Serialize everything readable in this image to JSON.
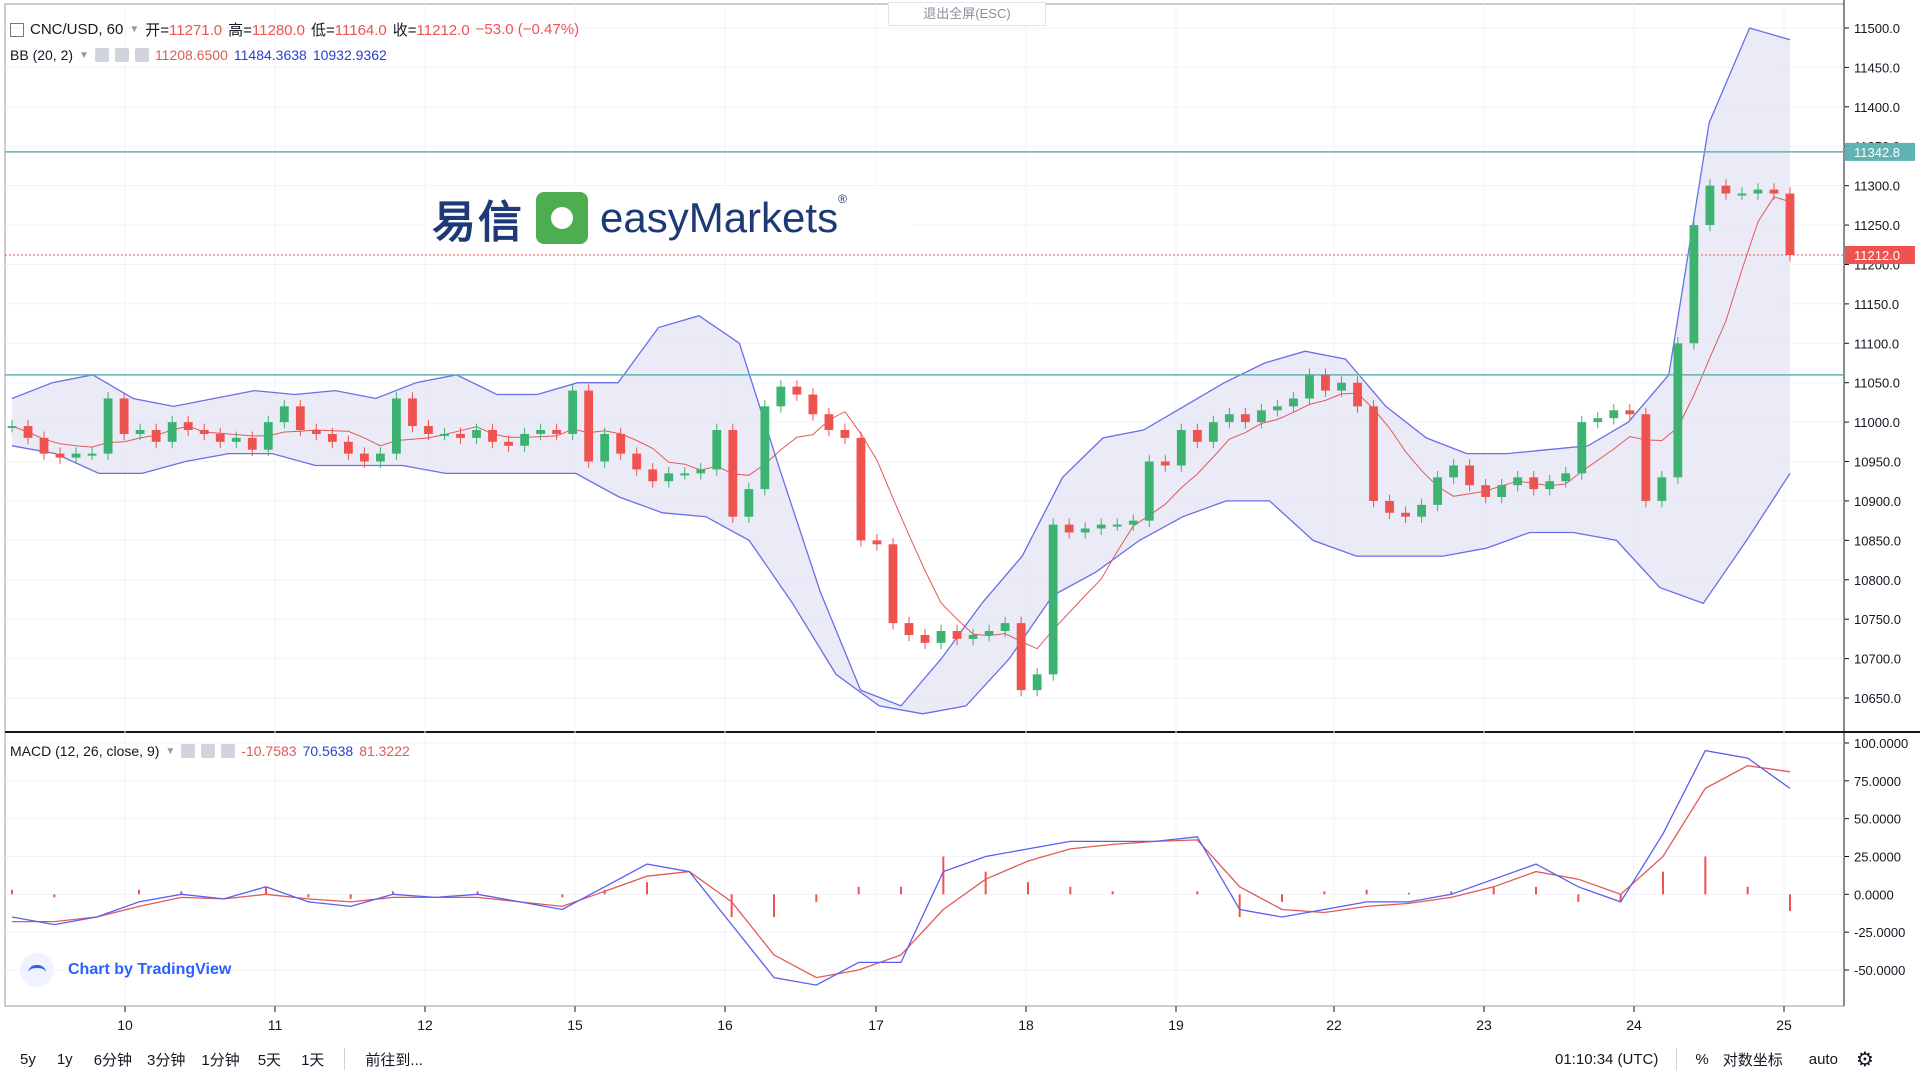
{
  "header": {
    "symbol": "CNC/USD, 60",
    "open_label": "开=",
    "open": "11271.0",
    "high_label": "高=",
    "high": "11280.0",
    "low_label": "低=",
    "low": "11164.0",
    "close_label": "收=",
    "close": "11212.0",
    "change": "−53.0 (−0.47%)",
    "exit_fullscreen": "退出全屏(ESC)"
  },
  "bb_legend": {
    "name": "BB (20, 2)",
    "basis": "11208.6500",
    "upper": "11484.3638",
    "lower": "10932.9362"
  },
  "macd_legend": {
    "name": "MACD (12, 26, close, 9)",
    "hist": "-10.7583",
    "macd": "70.5638",
    "signal": "81.3222"
  },
  "logo": {
    "cn": "易信",
    "en": "easyMarkets",
    "reg": "®"
  },
  "brand_text": "Chart by TradingView",
  "price_tags": {
    "line_high": "11342.8",
    "current": "11212.0"
  },
  "colors": {
    "up": "#26a69a",
    "green_candle": "#3cb371",
    "down": "#ef5350",
    "bb_band": "#6a6ee8",
    "bb_fill": "#e6e7f5",
    "basis": "#e05a5a",
    "hline": "#5fb3b3"
  },
  "bottom": {
    "timeframes": [
      "5y",
      "1y",
      "6分钟",
      "3分钟",
      "1分钟",
      "5天",
      "1天"
    ],
    "goto": "前往到...",
    "clock": "01:10:34 (UTC)",
    "percent": "%",
    "log": "对数坐标",
    "auto": "auto",
    "gear_icon": "gear-icon"
  },
  "chart_data": [
    {
      "type": "candlestick",
      "title": "CNC/USD, 60",
      "ylim": [
        10600,
        11520
      ],
      "y_ticks": [
        "11500.0",
        "11450.0",
        "11400.0",
        "11350.0",
        "11300.0",
        "11250.0",
        "11200.0",
        "11150.0",
        "11100.0",
        "11050.0",
        "11000.0",
        "10950.0",
        "10900.0",
        "10850.0",
        "10800.0",
        "10750.0",
        "10700.0",
        "10650.0"
      ],
      "x_ticks": [
        "10",
        "11",
        "12",
        "15",
        "16",
        "17",
        "18",
        "19",
        "22",
        "23",
        "24",
        "25"
      ],
      "horizontal_lines": [
        11342.8,
        11060
      ],
      "close_series": [
        10995,
        10980,
        10960,
        10955,
        10960,
        10960,
        11030,
        10985,
        10990,
        10975,
        11000,
        10990,
        10985,
        10975,
        10980,
        10965,
        11000,
        11020,
        10990,
        10985,
        10975,
        10960,
        10950,
        10960,
        11030,
        10995,
        10985,
        10985,
        10980,
        10990,
        10975,
        10970,
        10985,
        10990,
        10985,
        11040,
        10950,
        10985,
        10960,
        10940,
        10925,
        10935,
        10935,
        10940,
        10990,
        10880,
        10915,
        11020,
        11045,
        11035,
        11010,
        10990,
        10980,
        10850,
        10845,
        10745,
        10730,
        10720,
        10735,
        10725,
        10730,
        10735,
        10745,
        10660,
        10680,
        10870,
        10860,
        10865,
        10870,
        10870,
        10875,
        10950,
        10945,
        10990,
        10975,
        11000,
        11010,
        11000,
        11015,
        11020,
        11030,
        11060,
        11040,
        11050,
        11020,
        10900,
        10885,
        10880,
        10895,
        10930,
        10945,
        10920,
        10905,
        10920,
        10930,
        10915,
        10925,
        10935,
        11000,
        11005,
        11015,
        11010,
        10900,
        10930,
        11100,
        11250,
        11300,
        11290,
        11290,
        11295,
        11290,
        11212
      ],
      "bb_upper_approx": [
        11030,
        11050,
        11060,
        11030,
        11020,
        11030,
        11040,
        11035,
        11040,
        11030,
        11050,
        11060,
        11035,
        11035,
        11050,
        11050,
        11120,
        11135,
        11100,
        10940,
        10785,
        10660,
        10640,
        10700,
        10770,
        10830,
        10930,
        10980,
        10990,
        11020,
        11050,
        11075,
        11090,
        11080,
        11020,
        10980,
        10960,
        10960,
        10965,
        10970,
        11000,
        11060,
        11380,
        11500,
        11485
      ],
      "bb_lower_approx": [
        10970,
        10960,
        10935,
        10935,
        10950,
        10960,
        10960,
        10945,
        10945,
        10945,
        10935,
        10935,
        10935,
        10935,
        10905,
        10885,
        10880,
        10850,
        10770,
        10680,
        10640,
        10630,
        10640,
        10700,
        10780,
        10810,
        10850,
        10880,
        10900,
        10900,
        10850,
        10830,
        10830,
        10830,
        10840,
        10860,
        10860,
        10850,
        10790,
        10770,
        10850,
        10935
      ],
      "basis_last": 11208.65
    },
    {
      "type": "line",
      "title": "MACD (12, 26, close, 9)",
      "ylim": [
        -60,
        105
      ],
      "y_ticks": [
        "100.0000",
        "75.0000",
        "50.0000",
        "25.0000",
        "0.0000",
        "-25.0000",
        "-50.0000"
      ],
      "series": [
        {
          "name": "MACD",
          "values": [
            -15,
            -20,
            -15,
            -5,
            0,
            -3,
            5,
            -5,
            -8,
            0,
            -2,
            0,
            -5,
            -10,
            5,
            20,
            15,
            -20,
            -55,
            -60,
            -45,
            -45,
            15,
            25,
            30,
            35,
            35,
            35,
            38,
            -10,
            -15,
            -10,
            -5,
            -5,
            0,
            10,
            20,
            5,
            -5,
            40,
            95,
            90,
            70
          ]
        },
        {
          "name": "Signal",
          "values": [
            -18,
            -18,
            -15,
            -8,
            -2,
            -3,
            0,
            -3,
            -5,
            -2,
            -2,
            -2,
            -5,
            -8,
            2,
            12,
            15,
            -5,
            -40,
            -55,
            -50,
            -40,
            -10,
            10,
            22,
            30,
            33,
            35,
            36,
            5,
            -10,
            -12,
            -8,
            -6,
            -2,
            5,
            15,
            10,
            0,
            25,
            70,
            85,
            81
          ]
        },
        {
          "name": "Histogram",
          "values": [
            3,
            -2,
            0,
            3,
            2,
            0,
            5,
            -2,
            -3,
            2,
            0,
            2,
            0,
            -2,
            3,
            8,
            0,
            -15,
            -15,
            -5,
            5,
            5,
            25,
            15,
            8,
            5,
            2,
            0,
            2,
            -15,
            -5,
            2,
            3,
            1,
            2,
            5,
            5,
            -5,
            -5,
            15,
            25,
            5,
            -11
          ]
        }
      ]
    }
  ]
}
